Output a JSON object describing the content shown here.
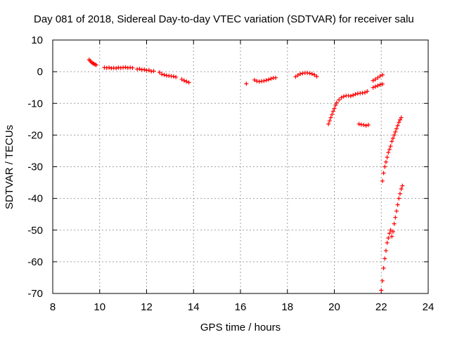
{
  "chart_data": {
    "type": "scatter",
    "title": "Day 081 of 2018, Sidereal Day-to-day VTEC variation (SDTVAR) for receiver salu",
    "xlabel": "GPS time / hours",
    "ylabel": "SDTVAR / TECUs",
    "xlim": [
      8,
      24
    ],
    "ylim": [
      -70,
      10
    ],
    "xticks": [
      8,
      10,
      12,
      14,
      16,
      18,
      20,
      22,
      24
    ],
    "yticks": [
      10,
      0,
      -10,
      -20,
      -30,
      -40,
      -50,
      -60,
      -70
    ],
    "xtick_labels": [
      "8",
      "10",
      "12",
      "14",
      "16",
      "18",
      "20",
      "22",
      "24"
    ],
    "ytick_labels": [
      "10",
      "0",
      "-10",
      "-20",
      "-30",
      "-40",
      "-50",
      "-60",
      "-70"
    ],
    "grid": true,
    "marker": "+",
    "color": "#ff0000",
    "segments": [
      {
        "x": [
          9.55,
          9.6,
          9.65,
          9.7,
          9.75,
          9.8,
          9.85
        ],
        "y": [
          3.8,
          3.4,
          3.0,
          2.7,
          2.5,
          2.3,
          2.1
        ]
      },
      {
        "x": [
          10.2,
          10.3,
          10.4,
          10.5,
          10.6,
          10.7,
          10.8,
          10.9,
          11.0,
          11.1,
          11.2,
          11.3,
          11.4
        ],
        "y": [
          1.3,
          1.2,
          1.3,
          1.1,
          1.2,
          1.1,
          1.3,
          1.2,
          1.3,
          1.4,
          1.2,
          1.3,
          1.2
        ]
      },
      {
        "x": [
          11.6,
          11.7,
          11.8,
          11.9,
          12.0,
          12.1,
          12.2,
          12.3
        ],
        "y": [
          0.8,
          0.9,
          0.6,
          0.7,
          0.4,
          0.5,
          0.1,
          0.2
        ]
      },
      {
        "x": [
          12.55,
          12.65,
          12.75,
          12.85,
          12.95,
          13.05,
          13.15,
          13.25
        ],
        "y": [
          -0.2,
          -0.8,
          -1.0,
          -1.2,
          -1.3,
          -1.4,
          -1.5,
          -1.7
        ]
      },
      {
        "x": [
          13.5,
          13.6,
          13.7,
          13.8
        ],
        "y": [
          -2.4,
          -2.8,
          -3.1,
          -3.4
        ]
      },
      {
        "x": [
          16.25
        ],
        "y": [
          -3.8
        ]
      },
      {
        "x": [
          16.6,
          16.7,
          16.8,
          16.9,
          17.0,
          17.1,
          17.2,
          17.3,
          17.4,
          17.5
        ],
        "y": [
          -2.6,
          -3.0,
          -3.1,
          -3.0,
          -2.9,
          -2.7,
          -2.5,
          -2.2,
          -2.0,
          -1.9
        ]
      },
      {
        "x": [
          18.35,
          18.45,
          18.55,
          18.65,
          18.75,
          18.85,
          18.95,
          19.05,
          19.15,
          19.25
        ],
        "y": [
          -1.6,
          -1.1,
          -0.7,
          -0.5,
          -0.4,
          -0.4,
          -0.5,
          -0.7,
          -1.0,
          -1.5
        ]
      },
      {
        "x": [
          19.75,
          19.8,
          19.85,
          19.9,
          19.95,
          20.0,
          20.05,
          20.1,
          20.2,
          20.3,
          20.4,
          20.5,
          20.6,
          20.7,
          20.8,
          20.9,
          21.0,
          21.1,
          21.2,
          21.3,
          21.4
        ],
        "y": [
          -16.5,
          -15.5,
          -14.5,
          -13.5,
          -12.5,
          -11.6,
          -10.6,
          -9.8,
          -8.9,
          -8.2,
          -7.8,
          -7.6,
          -7.6,
          -7.7,
          -7.4,
          -7.1,
          -6.9,
          -6.8,
          -6.7,
          -6.6,
          -6.2
        ]
      },
      {
        "x": [
          21.05,
          21.15,
          21.25,
          21.35,
          21.45
        ],
        "y": [
          -16.5,
          -16.7,
          -16.8,
          -17.0,
          -16.8
        ]
      },
      {
        "x": [
          21.65,
          21.75,
          21.85,
          21.95,
          22.05
        ],
        "y": [
          -2.8,
          -2.4,
          -1.9,
          -1.4,
          -1.0
        ]
      },
      {
        "x": [
          21.65,
          21.75,
          21.85,
          21.95,
          22.05
        ],
        "y": [
          -5.0,
          -4.7,
          -4.4,
          -4.1,
          -3.9
        ]
      },
      {
        "x": [
          22.05,
          22.1,
          22.15,
          22.2,
          22.25,
          22.3,
          22.35,
          22.4,
          22.45,
          22.5,
          22.55,
          22.6,
          22.65,
          22.7,
          22.75,
          22.8,
          22.85
        ],
        "y": [
          -34.5,
          -32.0,
          -30.0,
          -28.5,
          -27.0,
          -25.5,
          -24.5,
          -23.5,
          -22.0,
          -21.0,
          -20.0,
          -19.0,
          -18.0,
          -17.0,
          -16.0,
          -15.2,
          -14.5
        ]
      },
      {
        "x": [
          22.0,
          22.05,
          22.1,
          22.15,
          22.2,
          22.25,
          22.3,
          22.35,
          22.4,
          22.45,
          22.5,
          22.55,
          22.6,
          22.65,
          22.7,
          22.75,
          22.8,
          22.85,
          22.9
        ],
        "y": [
          -69.0,
          -66.0,
          -62.0,
          -59.0,
          -56.5,
          -54.0,
          -52.5,
          -51.0,
          -50.0,
          -52.0,
          -50.5,
          -48.0,
          -46.0,
          -44.0,
          -42.0,
          -40.0,
          -38.5,
          -37.0,
          -36.0
        ]
      }
    ]
  }
}
